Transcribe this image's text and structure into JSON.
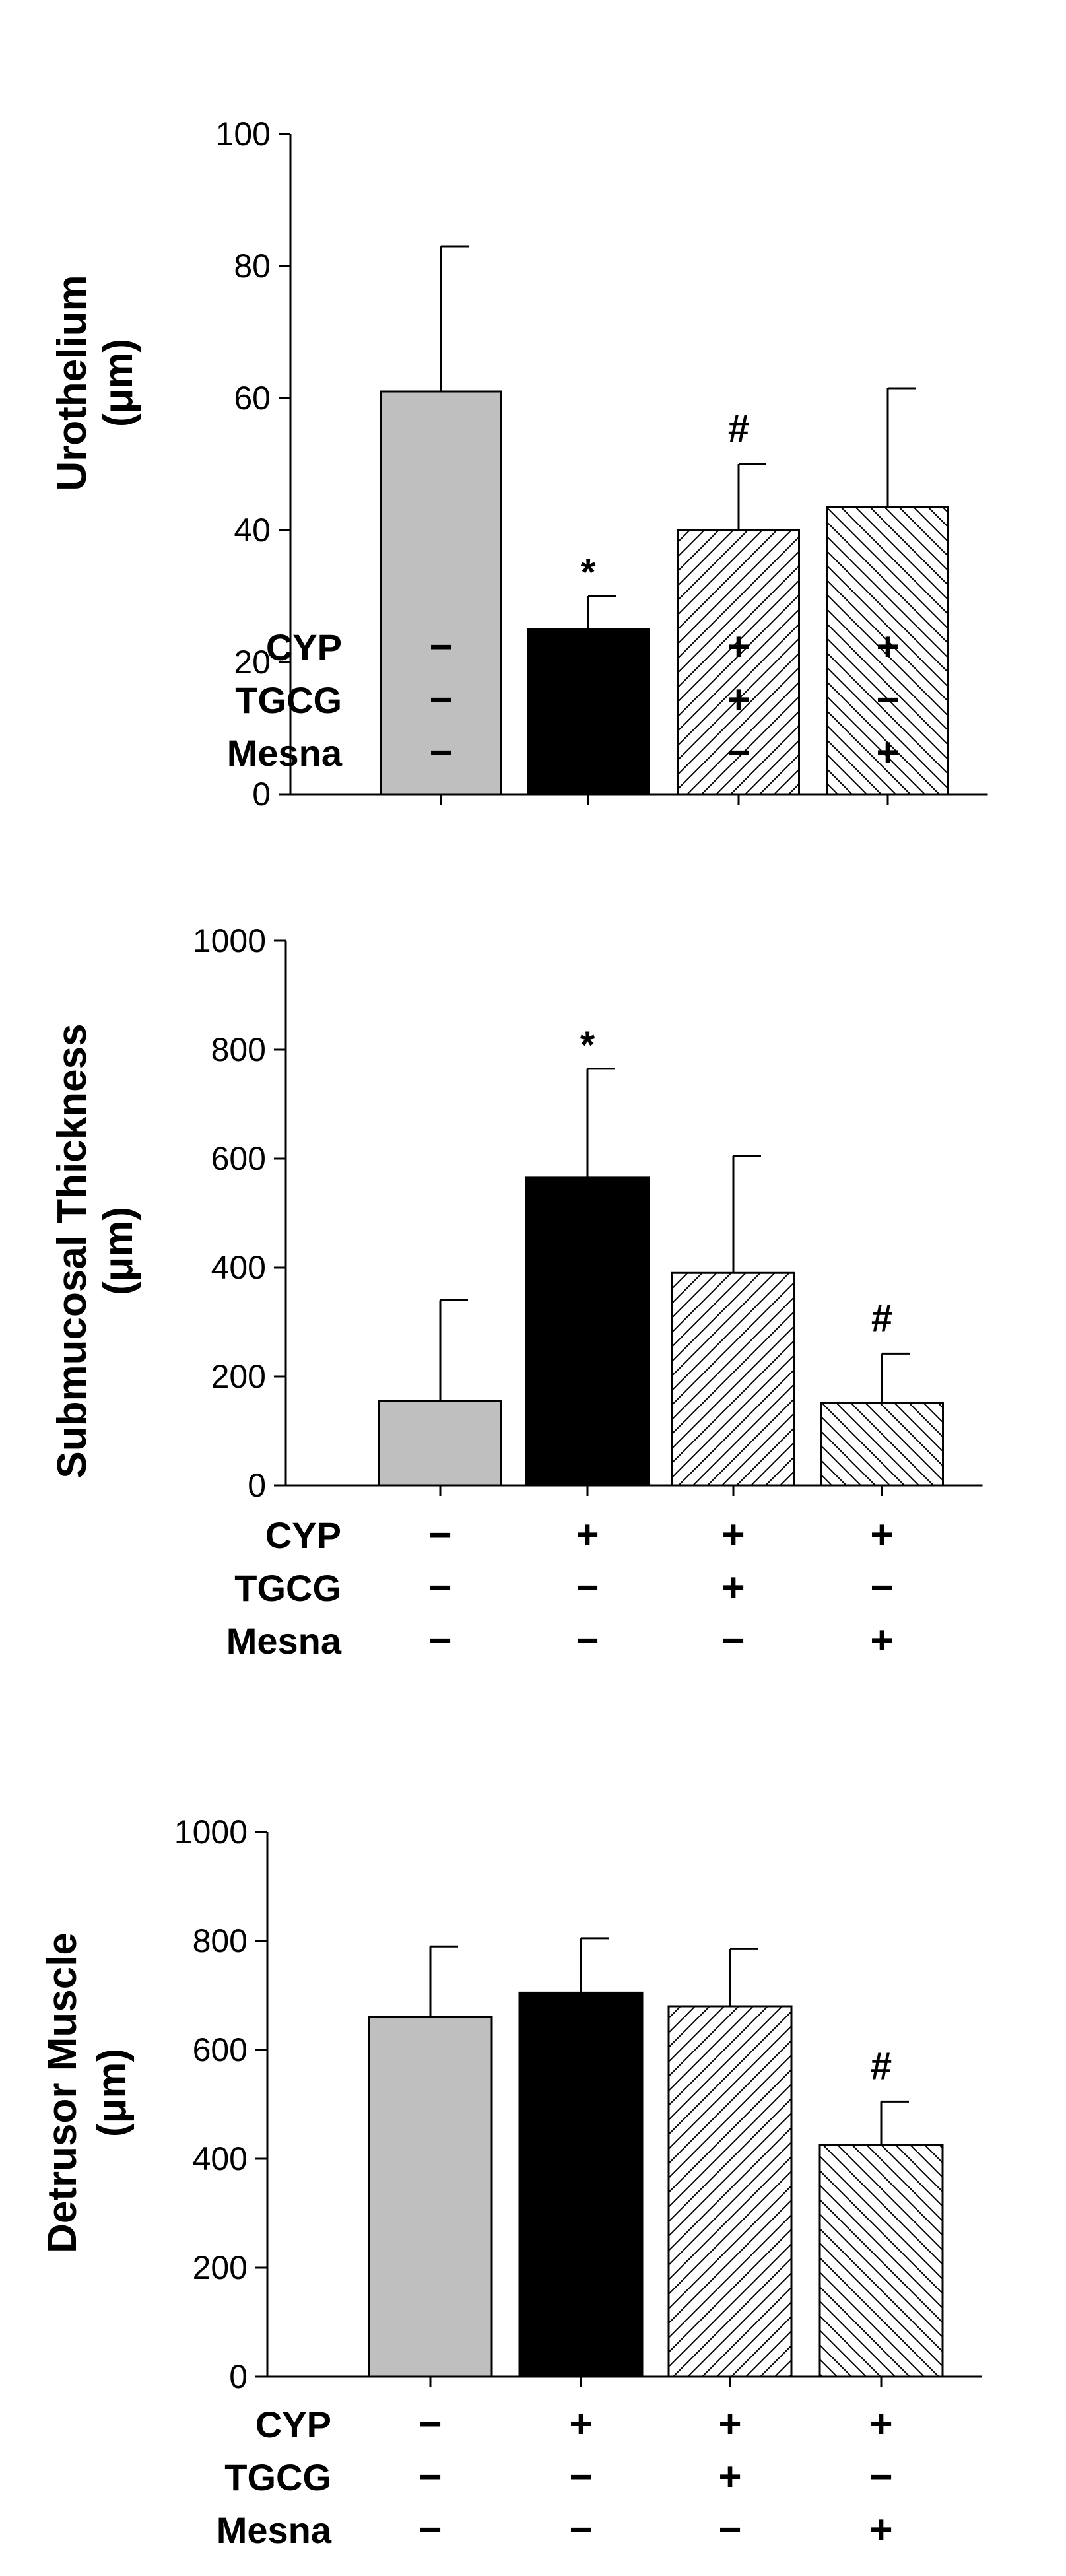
{
  "chart_data": [
    {
      "type": "bar",
      "ylabel": "Urothelium",
      "unit": "(μm)",
      "ylim": [
        0,
        100
      ],
      "yticks": [
        "0",
        "20",
        "40",
        "60",
        "80",
        "100"
      ],
      "values": [
        61,
        25,
        40,
        43.5
      ],
      "errors": [
        22,
        5,
        10,
        18
      ],
      "annotations": [
        "",
        "*",
        "#",
        ""
      ]
    },
    {
      "type": "bar",
      "ylabel": "Submucosal Thickness",
      "unit": "(μm)",
      "ylim": [
        0,
        1000
      ],
      "yticks": [
        "0",
        "200",
        "400",
        "600",
        "800",
        "1000"
      ],
      "values": [
        155,
        565,
        390,
        152
      ],
      "errors": [
        185,
        200,
        215,
        90
      ],
      "annotations": [
        "",
        "*",
        "",
        "#"
      ]
    },
    {
      "type": "bar",
      "ylabel": "Detrusor Muscle",
      "unit": "(μm)",
      "ylim": [
        0,
        1000
      ],
      "yticks": [
        "0",
        "200",
        "400",
        "600",
        "800",
        "1000"
      ],
      "values": [
        660,
        705,
        680,
        425
      ],
      "errors": [
        130,
        100,
        105,
        80
      ],
      "annotations": [
        "",
        "",
        "",
        "#"
      ]
    }
  ],
  "conditions": [
    {
      "label": "CYP",
      "signs": [
        "−",
        "+",
        "+",
        "+"
      ]
    },
    {
      "label": "TGCG",
      "signs": [
        "−",
        "−",
        "+",
        "−"
      ]
    },
    {
      "label": "Mesna",
      "signs": [
        "−",
        "−",
        "−",
        "+"
      ]
    }
  ],
  "colors": {
    "bar_fills": [
      "#bfbfbf",
      "#000000",
      "pattern:diag-right",
      "pattern:diag-left"
    ],
    "axis": "#000000",
    "hatch_stroke": "#000000"
  }
}
